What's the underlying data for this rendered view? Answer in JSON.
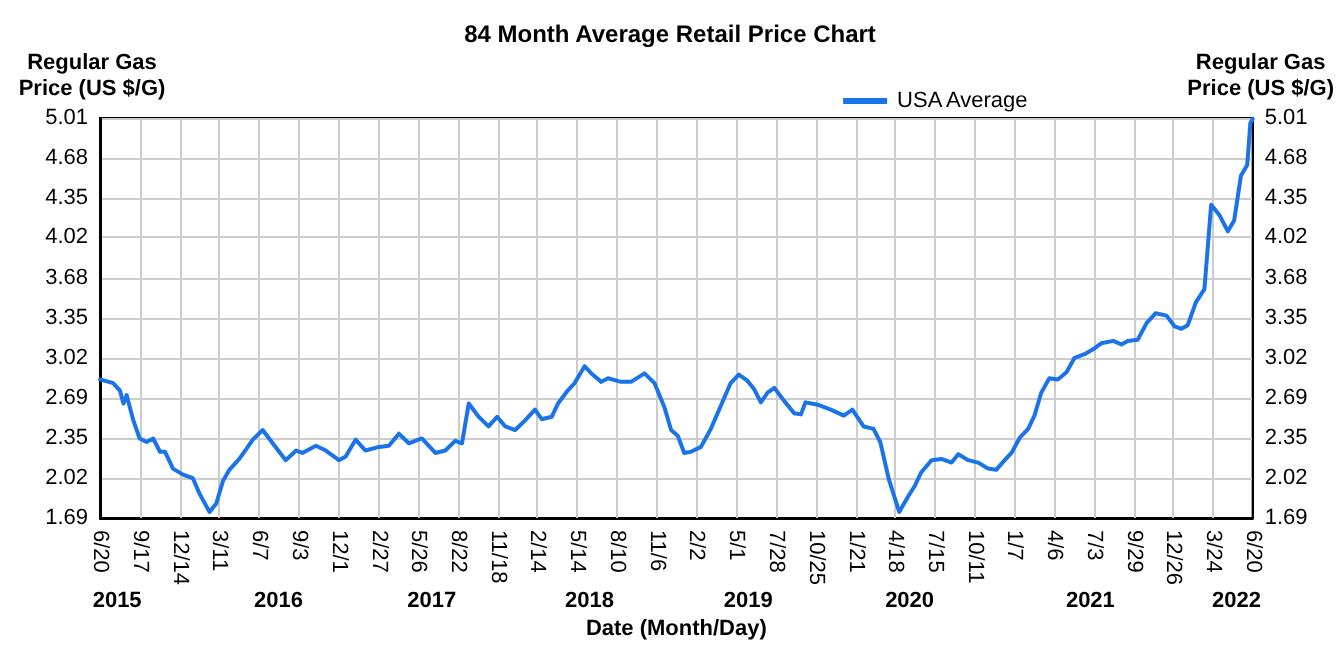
{
  "chart_data": {
    "type": "line",
    "title": "84 Month Average Retail Price Chart",
    "xlabel": "Date (Month/Day)",
    "ylabel": "Regular Gas\nPrice (US $/G)",
    "y2label": "Regular Gas\nPrice (US $/G)",
    "legend": "top right",
    "grid": true,
    "marker": "none",
    "line_style": "solid",
    "xlim": [
      "2015-06-20",
      "2022-06-20"
    ],
    "xticks": [
      {
        "value": "2015-06-20",
        "label": "6/20"
      },
      {
        "value": "2015-09-17",
        "label": "9/17"
      },
      {
        "value": "2015-12-14",
        "label": "12/14"
      },
      {
        "value": "2016-03-11",
        "label": "3/11"
      },
      {
        "value": "2016-06-07",
        "label": "6/7"
      },
      {
        "value": "2016-09-03",
        "label": "9/3"
      },
      {
        "value": "2016-12-01",
        "label": "12/1"
      },
      {
        "value": "2017-02-27",
        "label": "2/27"
      },
      {
        "value": "2017-05-26",
        "label": "5/26"
      },
      {
        "value": "2017-08-22",
        "label": "8/22"
      },
      {
        "value": "2017-11-18",
        "label": "11/18"
      },
      {
        "value": "2018-02-14",
        "label": "2/14"
      },
      {
        "value": "2018-05-14",
        "label": "5/14"
      },
      {
        "value": "2018-08-10",
        "label": "8/10"
      },
      {
        "value": "2018-11-06",
        "label": "11/6"
      },
      {
        "value": "2019-02-02",
        "label": "2/2"
      },
      {
        "value": "2019-05-01",
        "label": "5/1"
      },
      {
        "value": "2019-07-28",
        "label": "7/28"
      },
      {
        "value": "2019-10-25",
        "label": "10/25"
      },
      {
        "value": "2020-01-21",
        "label": "1/21"
      },
      {
        "value": "2020-04-18",
        "label": "4/18"
      },
      {
        "value": "2020-07-15",
        "label": "7/15"
      },
      {
        "value": "2020-10-11",
        "label": "10/11"
      },
      {
        "value": "2021-01-07",
        "label": "1/7"
      },
      {
        "value": "2021-04-06",
        "label": "4/6"
      },
      {
        "value": "2021-07-03",
        "label": "7/3"
      },
      {
        "value": "2021-09-29",
        "label": "9/29"
      },
      {
        "value": "2021-12-26",
        "label": "12/26"
      },
      {
        "value": "2022-03-24",
        "label": "3/24"
      },
      {
        "value": "2022-06-20",
        "label": "6/20"
      }
    ],
    "x2lim": [
      "2015-06-20",
      "2022-06-20"
    ],
    "x2ticks": [
      {
        "value": "2015-07-28",
        "label": "2015"
      },
      {
        "value": "2016-07-20",
        "label": "2016"
      },
      {
        "value": "2017-06-25",
        "label": "2017"
      },
      {
        "value": "2018-06-10",
        "label": "2018"
      },
      {
        "value": "2019-05-28",
        "label": "2019"
      },
      {
        "value": "2020-05-20",
        "label": "2020"
      },
      {
        "value": "2021-06-25",
        "label": "2021"
      },
      {
        "value": "2022-05-15",
        "label": "2022"
      }
    ],
    "ylim": [
      1.69,
      5.01
    ],
    "yticks": [
      1.69,
      2.02,
      2.35,
      2.69,
      3.02,
      3.35,
      3.68,
      4.02,
      4.35,
      4.68,
      5.01
    ],
    "y2lim": [
      1.69,
      5.01
    ],
    "y2ticks": [
      1.69,
      2.02,
      2.35,
      2.69,
      3.02,
      3.35,
      3.68,
      4.02,
      4.35,
      4.68,
      5.01
    ],
    "series": [
      {
        "name": "USA Average",
        "color": "#1a73e8",
        "x": [
          "2015-06-20",
          "2015-07-19",
          "2015-08-03",
          "2015-08-11",
          "2015-08-18",
          "2015-09-02",
          "2015-09-16",
          "2015-10-01",
          "2015-10-16",
          "2015-10-31",
          "2015-11-11",
          "2015-11-29",
          "2015-12-21",
          "2016-01-12",
          "2016-01-27",
          "2016-02-18",
          "2016-03-04",
          "2016-03-19",
          "2016-04-02",
          "2016-04-24",
          "2016-05-09",
          "2016-05-24",
          "2016-06-15",
          "2016-07-07",
          "2016-08-05",
          "2016-08-28",
          "2016-09-11",
          "2016-10-11",
          "2016-11-02",
          "2016-12-01",
          "2016-12-16",
          "2017-01-07",
          "2017-01-29",
          "2017-02-28",
          "2017-03-22",
          "2017-04-13",
          "2017-05-05",
          "2017-06-03",
          "2017-07-03",
          "2017-07-25",
          "2017-08-16",
          "2017-08-31",
          "2017-09-15",
          "2017-10-07",
          "2017-10-29",
          "2017-11-17",
          "2017-12-05",
          "2017-12-27",
          "2018-01-18",
          "2018-02-09",
          "2018-02-24",
          "2018-03-18",
          "2018-04-01",
          "2018-04-23",
          "2018-05-08",
          "2018-05-30",
          "2018-06-14",
          "2018-07-06",
          "2018-07-21",
          "2018-08-19",
          "2018-09-10",
          "2018-10-10",
          "2018-11-01",
          "2018-11-23",
          "2018-12-08",
          "2018-12-23",
          "2019-01-06",
          "2019-01-21",
          "2019-02-12",
          "2019-03-06",
          "2019-03-28",
          "2019-04-19",
          "2019-05-07",
          "2019-05-26",
          "2019-06-10",
          "2019-06-25",
          "2019-07-10",
          "2019-07-25",
          "2019-08-16",
          "2019-09-07",
          "2019-09-22",
          "2019-10-02",
          "2019-10-29",
          "2019-11-27",
          "2019-12-26",
          "2020-01-14",
          "2020-02-08",
          "2020-03-01",
          "2020-03-16",
          "2020-04-04",
          "2020-04-27",
          "2020-05-17",
          "2020-06-01",
          "2020-06-15",
          "2020-07-08",
          "2020-07-30",
          "2020-08-21",
          "2020-09-05",
          "2020-09-27",
          "2020-10-19",
          "2020-11-10",
          "2020-11-28",
          "2020-12-17",
          "2021-01-01",
          "2021-01-20",
          "2021-02-07",
          "2021-02-21",
          "2021-03-08",
          "2021-03-26",
          "2021-04-14",
          "2021-05-03",
          "2021-05-21",
          "2021-06-12",
          "2021-07-01",
          "2021-07-19",
          "2021-08-15",
          "2021-09-02",
          "2021-09-16",
          "2021-10-08",
          "2021-10-28",
          "2021-11-17",
          "2021-12-11",
          "2021-12-29",
          "2022-01-13",
          "2022-01-27",
          "2022-02-14",
          "2022-03-05",
          "2022-03-20",
          "2022-04-08",
          "2022-04-26",
          "2022-05-10",
          "2022-05-25",
          "2022-06-08",
          "2022-06-15",
          "2022-06-20"
        ],
        "values": [
          2.84,
          2.81,
          2.75,
          2.64,
          2.71,
          2.5,
          2.35,
          2.32,
          2.35,
          2.24,
          2.24,
          2.1,
          2.05,
          2.02,
          1.89,
          1.74,
          1.81,
          2.0,
          2.09,
          2.18,
          2.26,
          2.34,
          2.42,
          2.31,
          2.17,
          2.25,
          2.23,
          2.29,
          2.25,
          2.17,
          2.2,
          2.34,
          2.25,
          2.28,
          2.29,
          2.39,
          2.31,
          2.35,
          2.23,
          2.25,
          2.33,
          2.31,
          2.64,
          2.53,
          2.45,
          2.53,
          2.45,
          2.42,
          2.5,
          2.59,
          2.51,
          2.53,
          2.64,
          2.75,
          2.81,
          2.95,
          2.89,
          2.82,
          2.85,
          2.82,
          2.82,
          2.89,
          2.81,
          2.61,
          2.42,
          2.37,
          2.23,
          2.24,
          2.28,
          2.43,
          2.62,
          2.81,
          2.88,
          2.83,
          2.76,
          2.65,
          2.73,
          2.77,
          2.66,
          2.56,
          2.55,
          2.65,
          2.63,
          2.59,
          2.54,
          2.59,
          2.45,
          2.43,
          2.32,
          2.01,
          1.74,
          1.87,
          1.96,
          2.07,
          2.17,
          2.18,
          2.15,
          2.22,
          2.17,
          2.15,
          2.1,
          2.09,
          2.17,
          2.23,
          2.36,
          2.43,
          2.54,
          2.73,
          2.85,
          2.84,
          2.9,
          3.02,
          3.05,
          3.09,
          3.14,
          3.16,
          3.13,
          3.16,
          3.17,
          3.31,
          3.39,
          3.37,
          3.28,
          3.26,
          3.29,
          3.48,
          3.59,
          4.29,
          4.2,
          4.07,
          4.16,
          4.53,
          4.62,
          4.97,
          5.0
        ]
      }
    ]
  }
}
